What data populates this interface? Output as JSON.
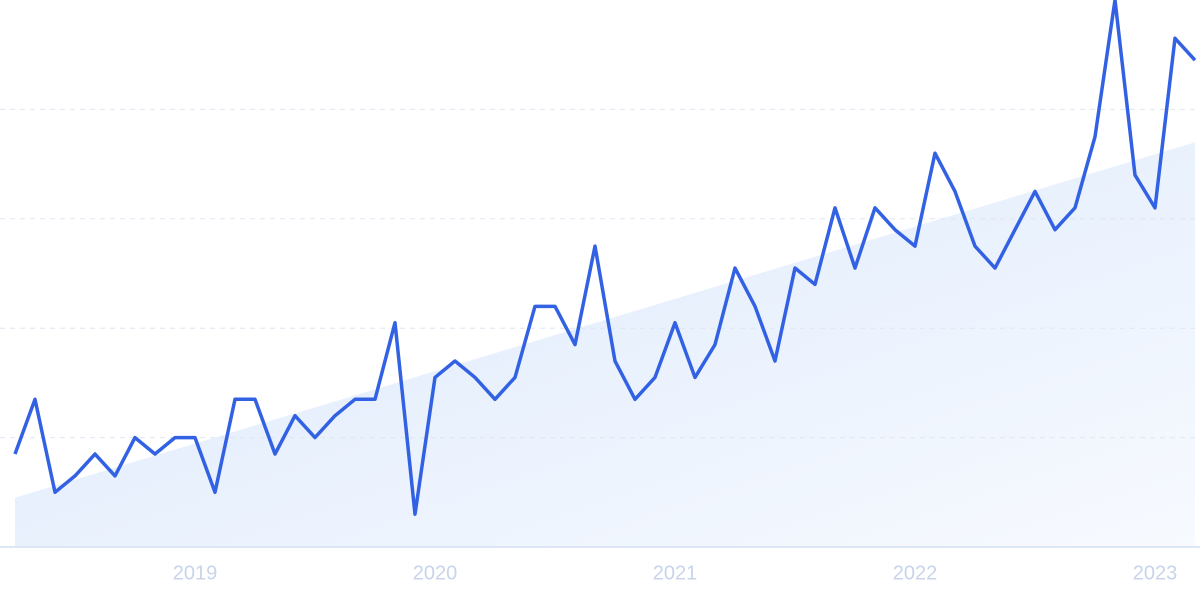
{
  "chart_data": {
    "type": "line",
    "categories": [
      null,
      null,
      null,
      null,
      null,
      null,
      null,
      null,
      null,
      "2019",
      null,
      null,
      null,
      null,
      null,
      null,
      null,
      null,
      null,
      null,
      null,
      "2020",
      null,
      null,
      null,
      null,
      null,
      null,
      null,
      null,
      null,
      null,
      null,
      "2021",
      null,
      null,
      null,
      null,
      null,
      null,
      null,
      null,
      null,
      null,
      null,
      "2022",
      null,
      null,
      null,
      null,
      null,
      null,
      null,
      null,
      null,
      null,
      null,
      "2023",
      null,
      null
    ],
    "series": [
      {
        "color": "#3262e3",
        "values": [
          17,
          27,
          10,
          13,
          17,
          13,
          20,
          17,
          20,
          20,
          10,
          27,
          27,
          17,
          24,
          20,
          24,
          27,
          27,
          41,
          6,
          31,
          34,
          31,
          27,
          31,
          44,
          44,
          37,
          55,
          34,
          27,
          31,
          41,
          31,
          37,
          51,
          44,
          34,
          51,
          48,
          62,
          51,
          62,
          58,
          55,
          72,
          65,
          55,
          51,
          58,
          65,
          58,
          62,
          75,
          100,
          68,
          62,
          93,
          89
        ]
      }
    ],
    "trend": [
      9,
      74
    ],
    "trend_color": "#e3edfc",
    "ylim": [
      0,
      100
    ],
    "yticks": [
      20,
      40,
      60,
      80
    ],
    "grid": true
  }
}
